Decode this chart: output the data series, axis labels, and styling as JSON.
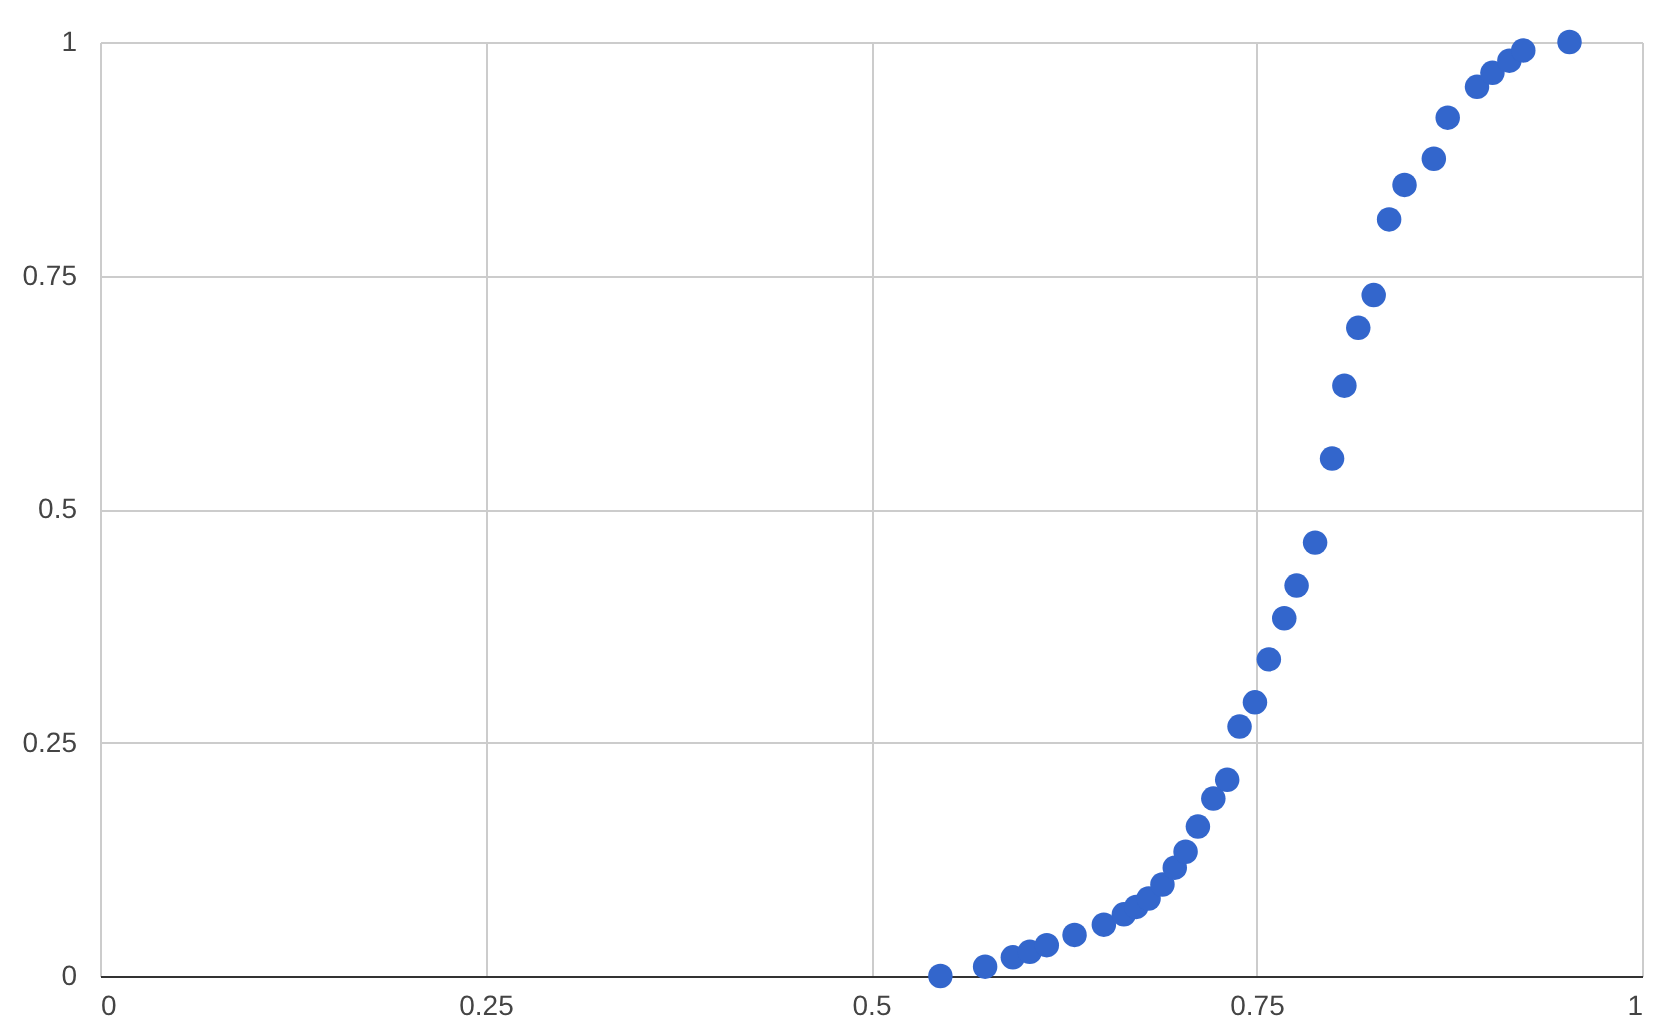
{
  "chart_data": {
    "type": "scatter",
    "x": [
      0.545,
      0.574,
      0.592,
      0.603,
      0.614,
      0.632,
      0.651,
      0.664,
      0.672,
      0.68,
      0.689,
      0.697,
      0.704,
      0.712,
      0.722,
      0.731,
      0.739,
      0.749,
      0.758,
      0.768,
      0.776,
      0.788,
      0.799,
      0.807,
      0.816,
      0.826,
      0.836,
      0.846,
      0.865,
      0.874,
      0.893,
      0.903,
      0.914,
      0.923,
      0.953
    ],
    "series": [
      {
        "color": "#3366cc",
        "values": [
          0.0,
          0.01,
          0.02,
          0.026,
          0.033,
          0.044,
          0.055,
          0.066,
          0.074,
          0.083,
          0.098,
          0.116,
          0.133,
          0.16,
          0.19,
          0.21,
          0.267,
          0.293,
          0.339,
          0.383,
          0.418,
          0.464,
          0.554,
          0.632,
          0.694,
          0.729,
          0.81,
          0.847,
          0.875,
          0.919,
          0.952,
          0.967,
          0.98,
          0.991,
          1.0
        ]
      }
    ],
    "xlim": [
      0,
      1
    ],
    "ylim": [
      0,
      1
    ],
    "xticks": [
      0,
      0.25,
      0.5,
      0.75,
      1
    ],
    "yticks": [
      0,
      0.25,
      0.5,
      0.75,
      1
    ],
    "grid": true,
    "marker": "circle"
  }
}
